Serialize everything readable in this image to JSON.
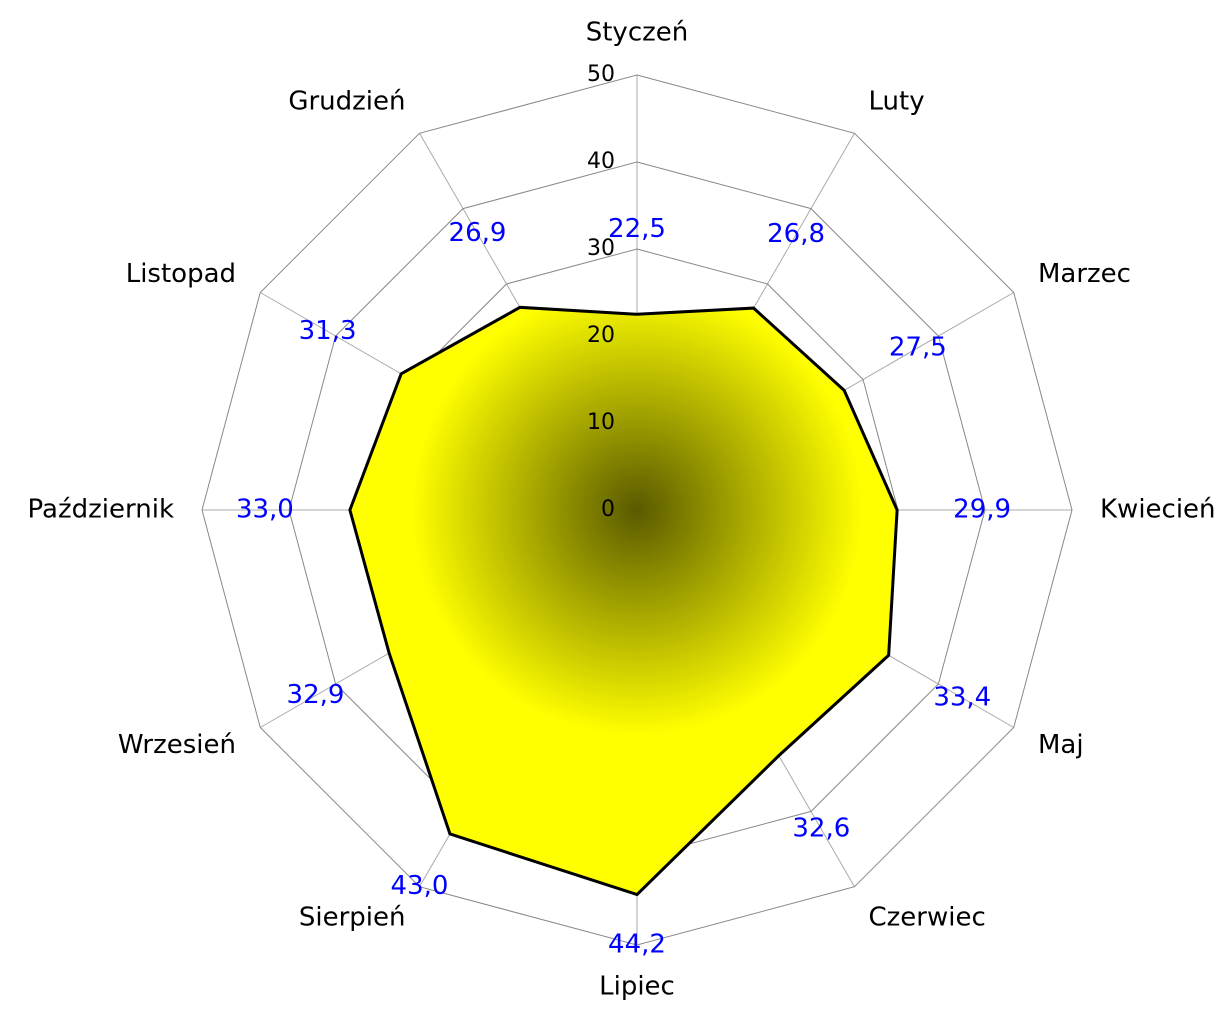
{
  "chart_data": {
    "type": "radar",
    "categories": [
      "Styczeń",
      "Luty",
      "Marzec",
      "Kwiecień",
      "Maj",
      "Czerwiec",
      "Lipiec",
      "Sierpień",
      "Wrzesień",
      "Październik",
      "Listopad",
      "Grudzień"
    ],
    "values": [
      22.5,
      26.8,
      27.5,
      29.9,
      33.4,
      32.6,
      44.2,
      43.0,
      32.9,
      33.0,
      31.3,
      26.9
    ],
    "value_labels": [
      "22,5",
      "26,8",
      "27,5",
      "29,9",
      "33,4",
      "32,6",
      "44,2",
      "43,0",
      "32,9",
      "33,0",
      "31,3",
      "26,9"
    ],
    "rlim": [
      0,
      50
    ],
    "rticks": [
      0,
      10,
      20,
      30,
      40,
      50
    ],
    "color": "#ffff00",
    "label_color": "#0000ff",
    "grid": true
  }
}
